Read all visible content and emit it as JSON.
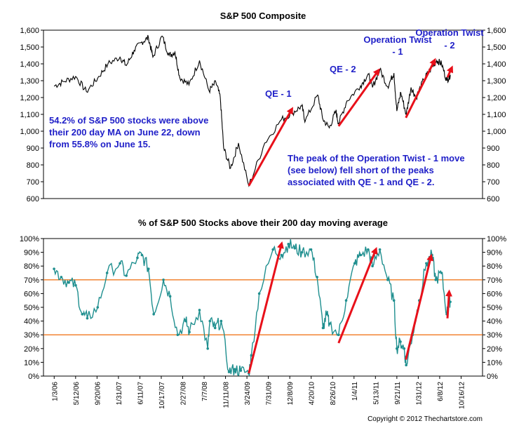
{
  "chart_data": [
    {
      "type": "line",
      "title": "S&P 500 Composite",
      "ylim": [
        600,
        1600
      ],
      "yticks": [
        "600",
        "700",
        "800",
        "900",
        "1,000",
        "1,100",
        "1,200",
        "1,300",
        "1,400",
        "1,500",
        "1,600"
      ],
      "grid": false,
      "series": [
        {
          "x": [
            "2006-01-03",
            "2006-03-01",
            "2006-05-12",
            "2006-07-15",
            "2006-09-20",
            "2006-11-20",
            "2007-01-31",
            "2007-03-10",
            "2007-04-25",
            "2007-06-11",
            "2007-07-20",
            "2007-08-15",
            "2007-10-09",
            "2007-11-20",
            "2007-12-25",
            "2008-01-22",
            "2008-03-17",
            "2008-05-19",
            "2008-07-15",
            "2008-08-25",
            "2008-09-20",
            "2008-10-10",
            "2008-11-20",
            "2009-01-06",
            "2009-03-09",
            "2009-06-12",
            "2009-09-20",
            "2009-11-25",
            "2010-01-19",
            "2010-02-08",
            "2010-04-23",
            "2010-05-25",
            "2010-07-02",
            "2010-08-10",
            "2010-08-26",
            "2010-10-15",
            "2011-01-04",
            "2011-02-18",
            "2011-03-16",
            "2011-04-29",
            "2011-06-15",
            "2011-07-22",
            "2011-08-08",
            "2011-09-01",
            "2011-10-03",
            "2011-11-01",
            "2011-12-01",
            "2012-01-15",
            "2012-02-20",
            "2012-04-02",
            "2012-05-01",
            "2012-06-01",
            "2012-06-22"
          ],
          "values": [
            1268,
            1295,
            1325,
            1235,
            1315,
            1400,
            1440,
            1390,
            1480,
            1530,
            1555,
            1440,
            1565,
            1450,
            1470,
            1320,
            1275,
            1420,
            1240,
            1290,
            1200,
            900,
            780,
            930,
            676,
            930,
            1070,
            1110,
            1150,
            1060,
            1215,
            1070,
            1020,
            1120,
            1045,
            1180,
            1270,
            1340,
            1260,
            1365,
            1265,
            1345,
            1120,
            1230,
            1099,
            1260,
            1200,
            1305,
            1360,
            1420,
            1400,
            1300,
            1335
          ]
        }
      ],
      "annotations": [
        "QE - 1",
        "QE - 2",
        "Operation Twist - 1",
        "Operation Twist - 2",
        "54.2% of S&P 500 stocks were above their 200 day MA on June 22, down from 55.8% on June 15.",
        "The peak of the Operation Twist - 1 move (see below) fell short of the peaks associated with QE - 1 and QE - 2."
      ]
    },
    {
      "type": "line",
      "title": "% of S&P 500 Stocks above their 200 day moving average",
      "ylim": [
        0,
        100
      ],
      "yticks": [
        "0%",
        "10%",
        "20%",
        "30%",
        "40%",
        "50%",
        "60%",
        "70%",
        "80%",
        "90%",
        "100%"
      ],
      "reference_lines": [
        30,
        70
      ],
      "xticks": [
        "1/3/06",
        "5/12/06",
        "9/20/06",
        "1/31/07",
        "6/11/07",
        "10/17/07",
        "2/27/08",
        "7/7/08",
        "11/11/08",
        "3/24/09",
        "7/31/09",
        "12/8/09",
        "4/20/10",
        "8/26/10",
        "1/4/11",
        "5/13/11",
        "9/21/11",
        "1/31/12",
        "6/8/12",
        "10/16/12"
      ],
      "series": [
        {
          "x": [
            "2006-01-03",
            "2006-02-15",
            "2006-04-01",
            "2006-05-12",
            "2006-06-20",
            "2006-07-20",
            "2006-09-20",
            "2006-11-15",
            "2007-01-31",
            "2007-03-10",
            "2007-05-15",
            "2007-06-11",
            "2007-07-20",
            "2007-08-20",
            "2007-10-17",
            "2007-11-26",
            "2008-01-10",
            "2008-02-27",
            "2008-03-20",
            "2008-05-19",
            "2008-07-07",
            "2008-07-20",
            "2008-08-20",
            "2008-09-25",
            "2008-11-11",
            "2008-12-15",
            "2009-01-20",
            "2009-03-09",
            "2009-03-24",
            "2009-05-10",
            "2009-07-31",
            "2009-09-20",
            "2009-10-31",
            "2009-12-08",
            "2010-01-20",
            "2010-03-15",
            "2010-04-20",
            "2010-05-25",
            "2010-06-15",
            "2010-07-02",
            "2010-08-26",
            "2010-10-10",
            "2010-11-30",
            "2011-01-04",
            "2011-02-18",
            "2011-03-16",
            "2011-04-29",
            "2011-06-15",
            "2011-07-22",
            "2011-08-08",
            "2011-08-30",
            "2011-09-21",
            "2011-10-03",
            "2011-11-10",
            "2011-12-20",
            "2012-01-31",
            "2012-03-05",
            "2012-03-27",
            "2012-05-01",
            "2012-06-01",
            "2012-06-15",
            "2012-06-22"
          ],
          "values": [
            78,
            72,
            68,
            66,
            45,
            42,
            50,
            75,
            82,
            73,
            86,
            88,
            78,
            45,
            70,
            58,
            30,
            40,
            32,
            48,
            20,
            40,
            35,
            40,
            3,
            5,
            4,
            2,
            15,
            60,
            92,
            88,
            96,
            93,
            90,
            92,
            72,
            35,
            45,
            38,
            30,
            55,
            82,
            88,
            92,
            80,
            92,
            70,
            55,
            20,
            25,
            20,
            8,
            30,
            55,
            82,
            88,
            70,
            75,
            45,
            56,
            54
          ]
        }
      ]
    }
  ],
  "copyright": "Copyright © 2012 Thechartstore.com"
}
